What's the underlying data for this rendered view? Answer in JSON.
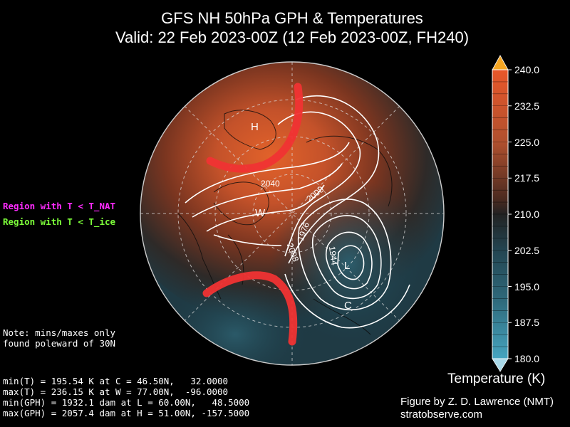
{
  "title": {
    "line1": "GFS NH 50hPa GPH & Temperatures",
    "line2": "Valid: 22 Feb 2023-00Z  (12 Feb 2023-00Z, FH240)"
  },
  "legend": {
    "nat_label": "Region with T < T_NAT",
    "nat_color": "#ff2bff",
    "ice_label": "Region with T < T_ice",
    "ice_color": "#7dff3a"
  },
  "note": {
    "line1": "Note: mins/maxes only",
    "line2": "found poleward of 30N"
  },
  "stats": {
    "min_t": "min(T) = 195.54 K at C = 46.50N,   32.0000",
    "max_t": "max(T) = 236.15 K at W = 77.00N,  -96.0000",
    "min_gph": "min(GPH) = 1932.1 dam at L = 60.00N,   48.5000",
    "max_gph": "max(GPH) = 2057.4 dam at H = 51.00N, -157.5000"
  },
  "credit": {
    "line1": "Figure by Z. D. Lawrence (NMT)",
    "line2": "stratobserve.com"
  },
  "colorbar": {
    "title": "Temperature (K)",
    "ticks": [
      "240.0",
      "232.5",
      "225.0",
      "217.5",
      "210.0",
      "202.5",
      "195.0",
      "187.5",
      "180.0"
    ],
    "min": 180.0,
    "max": 240.0,
    "extend": "both"
  },
  "map": {
    "markers": [
      "H",
      "W",
      "L",
      "C"
    ],
    "contour_labels": [
      "2040",
      "2008",
      "1976",
      "1944",
      "2008"
    ]
  }
}
